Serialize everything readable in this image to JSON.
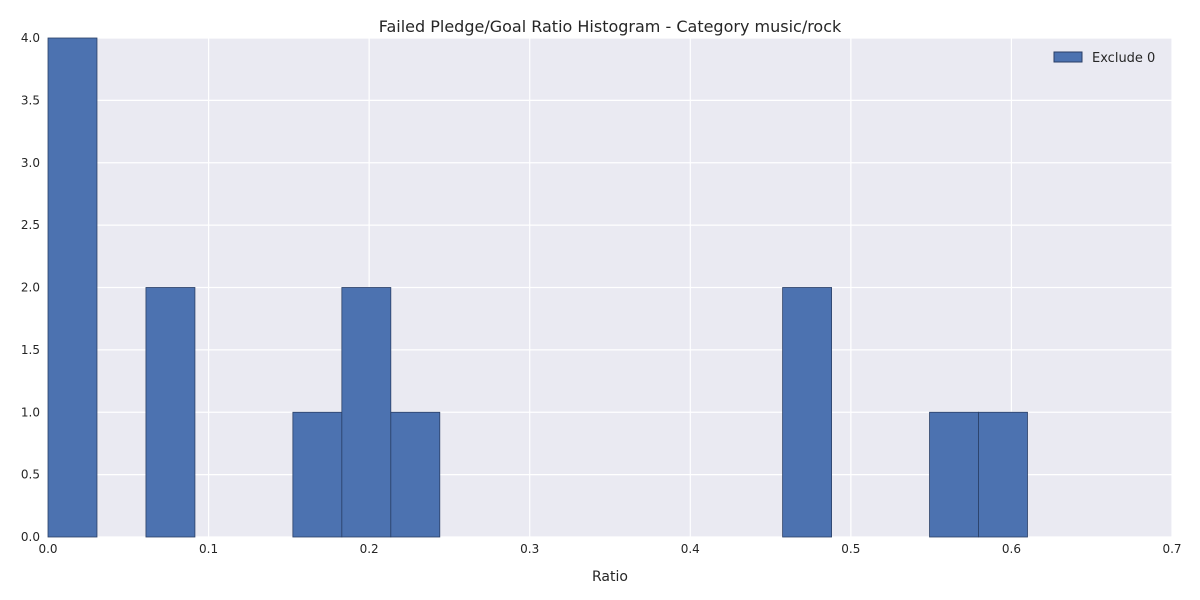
{
  "chart_data": {
    "type": "bar",
    "title": "Failed Pledge/Goal Ratio Histogram - Category music/rock",
    "xlabel": "Ratio",
    "ylabel": "",
    "xlim": [
      0,
      0.7
    ],
    "ylim": [
      0,
      4
    ],
    "xticks": [
      "0.0",
      "0.1",
      "0.2",
      "0.3",
      "0.4",
      "0.5",
      "0.6",
      "0.7"
    ],
    "yticks": [
      "0.0",
      "0.5",
      "1.0",
      "1.5",
      "2.0",
      "2.5",
      "3.0",
      "3.5",
      "4.0"
    ],
    "grid": true,
    "legend": {
      "position": "top-right"
    },
    "series": [
      {
        "name": "Exclude 0",
        "color": "#4c72b0",
        "bins": [
          {
            "x0": 0.0,
            "x1": 0.0305,
            "count": 4
          },
          {
            "x0": 0.0305,
            "x1": 0.061,
            "count": 0
          },
          {
            "x0": 0.061,
            "x1": 0.0915,
            "count": 2
          },
          {
            "x0": 0.0915,
            "x1": 0.122,
            "count": 0
          },
          {
            "x0": 0.122,
            "x1": 0.1525,
            "count": 0
          },
          {
            "x0": 0.1525,
            "x1": 0.183,
            "count": 1
          },
          {
            "x0": 0.183,
            "x1": 0.2135,
            "count": 2
          },
          {
            "x0": 0.2135,
            "x1": 0.244,
            "count": 1
          },
          {
            "x0": 0.244,
            "x1": 0.2745,
            "count": 0
          },
          {
            "x0": 0.2745,
            "x1": 0.305,
            "count": 0
          },
          {
            "x0": 0.305,
            "x1": 0.3355,
            "count": 0
          },
          {
            "x0": 0.3355,
            "x1": 0.366,
            "count": 0
          },
          {
            "x0": 0.366,
            "x1": 0.3965,
            "count": 0
          },
          {
            "x0": 0.3965,
            "x1": 0.427,
            "count": 0
          },
          {
            "x0": 0.427,
            "x1": 0.4575,
            "count": 0
          },
          {
            "x0": 0.4575,
            "x1": 0.488,
            "count": 2
          },
          {
            "x0": 0.488,
            "x1": 0.5185,
            "count": 0
          },
          {
            "x0": 0.5185,
            "x1": 0.549,
            "count": 0
          },
          {
            "x0": 0.549,
            "x1": 0.5795,
            "count": 1
          },
          {
            "x0": 0.5795,
            "x1": 0.61,
            "count": 1
          }
        ]
      }
    ],
    "colors": {
      "plot_background": "#eaeaf2",
      "grid": "#ffffff",
      "bar_edge": "#2a3f66"
    }
  }
}
